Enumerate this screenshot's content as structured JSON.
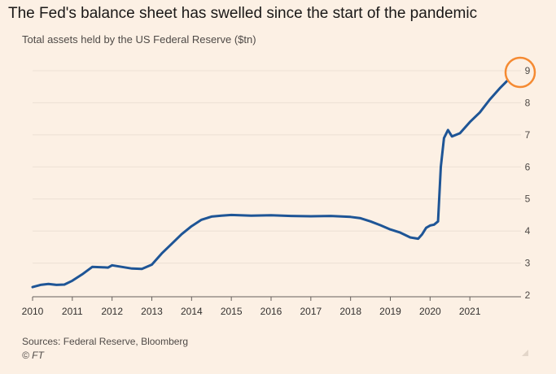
{
  "title": "The Fed's balance sheet has swelled since the start of the pandemic",
  "subtitle": "Total assets held by the US Federal Reserve ($tn)",
  "source": "Sources: Federal Reserve, Bloomberg",
  "copyright": "© FT",
  "colors": {
    "background": "#fcf0e4",
    "line": "#1e5596",
    "gridline": "#ece0d4",
    "highlight": "#f58a32",
    "text": "#33302e"
  },
  "chart_data": {
    "type": "line",
    "title": "The Fed's balance sheet has swelled since the start of the pandemic",
    "ylabel": "Total assets held by the US Federal Reserve ($tn)",
    "xlim": [
      2010,
      2022
    ],
    "ylim": [
      2,
      9
    ],
    "x_ticks": [
      "2010",
      "2011",
      "2012",
      "2013",
      "2014",
      "2015",
      "2016",
      "2017",
      "2018",
      "2019",
      "2020",
      "2021"
    ],
    "y_ticks": [
      "2",
      "3",
      "4",
      "5",
      "6",
      "7",
      "8",
      "9"
    ],
    "y_axis_side": "right",
    "grid": "horizontal",
    "annotation": "circle around latest value near 9",
    "series": [
      {
        "x": [
          2010.0,
          2010.2,
          2010.4,
          2010.6,
          2010.8,
          2011.0,
          2011.25,
          2011.5,
          2011.75,
          2011.9,
          2012.0,
          2012.25,
          2012.5,
          2012.75,
          2013.0,
          2013.25,
          2013.5,
          2013.75,
          2014.0,
          2014.25,
          2014.5,
          2014.75,
          2015.0,
          2015.5,
          2016.0,
          2016.5,
          2017.0,
          2017.5,
          2018.0,
          2018.25,
          2018.5,
          2018.75,
          2019.0,
          2019.25,
          2019.5,
          2019.7,
          2019.8,
          2019.9,
          2020.0,
          2020.1,
          2020.2,
          2020.27,
          2020.35,
          2020.45,
          2020.55,
          2020.75,
          2021.0,
          2021.25,
          2021.5,
          2021.75,
          2021.95
        ],
        "values": [
          2.25,
          2.32,
          2.35,
          2.32,
          2.33,
          2.45,
          2.65,
          2.88,
          2.87,
          2.86,
          2.93,
          2.88,
          2.83,
          2.82,
          2.95,
          3.3,
          3.6,
          3.9,
          4.15,
          4.35,
          4.45,
          4.48,
          4.5,
          4.48,
          4.49,
          4.47,
          4.46,
          4.47,
          4.44,
          4.4,
          4.3,
          4.18,
          4.05,
          3.95,
          3.8,
          3.76,
          3.9,
          4.1,
          4.17,
          4.2,
          4.3,
          6.0,
          6.9,
          7.15,
          6.95,
          7.05,
          7.4,
          7.7,
          8.1,
          8.45,
          8.7
        ]
      }
    ]
  }
}
